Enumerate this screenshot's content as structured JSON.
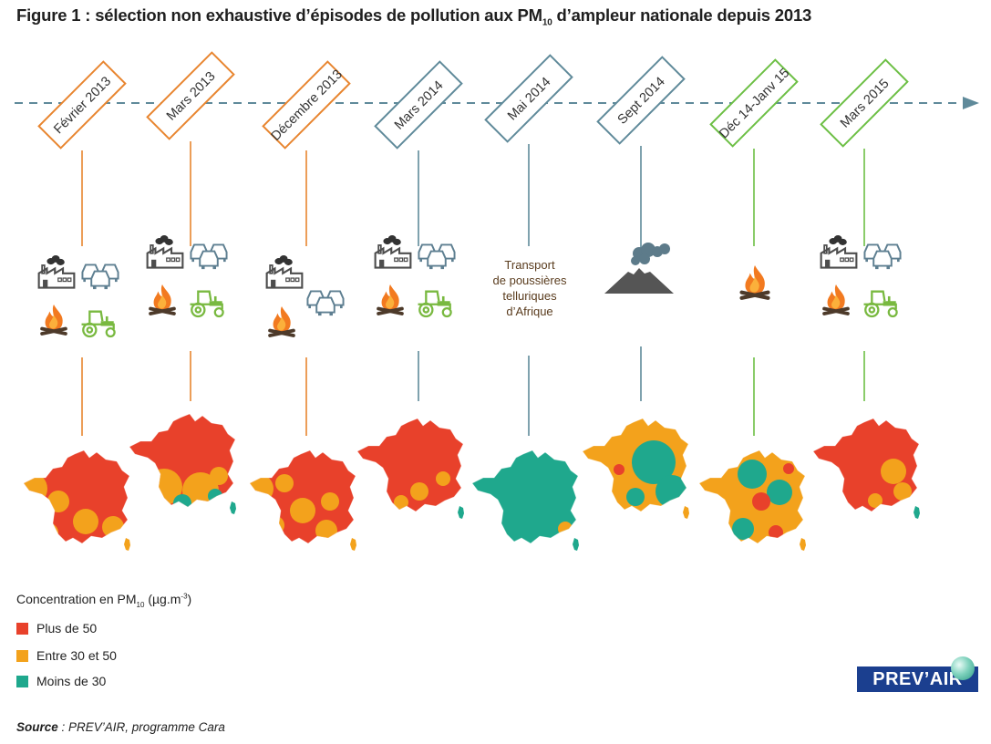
{
  "title": {
    "prefix": "Figure 1 : sélection non exhaustive d’épisodes de pollution aux PM",
    "sub": "10",
    "suffix": " d’ampleur nationale depuis 2013"
  },
  "episodes": [
    {
      "label": "Février 2013",
      "color": "#e8852f",
      "sources": [
        "industry",
        "traffic",
        "wood-burning",
        "agriculture"
      ]
    },
    {
      "label": "Mars 2013",
      "color": "#e8852f",
      "sources": [
        "industry",
        "traffic",
        "wood-burning",
        "agriculture"
      ]
    },
    {
      "label": "Décembre 2013",
      "color": "#e8852f",
      "sources": [
        "industry",
        "traffic",
        "wood-burning"
      ]
    },
    {
      "label": "Mars 2014",
      "color": "#5f8a9a",
      "sources": [
        "industry",
        "traffic",
        "wood-burning",
        "agriculture"
      ]
    },
    {
      "label": "Mai 2014",
      "color": "#5f8a9a",
      "sources": [
        "desert-dust"
      ]
    },
    {
      "label": "Sept 2014",
      "color": "#5f8a9a",
      "sources": [
        "volcano"
      ]
    },
    {
      "label": "Déc 14-Janv 15",
      "color": "#6cbf44",
      "sources": [
        "wood-burning"
      ]
    },
    {
      "label": "Mars 2015",
      "color": "#6cbf44",
      "sources": [
        "industry",
        "traffic",
        "wood-burning",
        "agriculture"
      ]
    }
  ],
  "dust_text": [
    "Transport",
    "de poussières",
    "telluriques",
    "d’Afrique"
  ],
  "legend": {
    "title_prefix": "Concentration en PM",
    "title_sub": "10",
    "title_mid": " (µg.m",
    "title_sup": "-3",
    "title_end": ")",
    "items": [
      {
        "label": "Plus de 50",
        "color": "#e8412b"
      },
      {
        "label": "Entre 30 et 50",
        "color": "#f3a21c"
      },
      {
        "label": "Moins de 30",
        "color": "#1fa88d"
      }
    ]
  },
  "source": {
    "label": "Source",
    "text": " : PREV’AIR, programme Cara"
  },
  "logo": "PREV’AIR",
  "colors": {
    "timeline": "#5f8a9a",
    "red": "#e8412b",
    "orange": "#f3a21c",
    "teal": "#1fa88d",
    "icon_grey": "#4d4d4d",
    "icon_steel": "#5e7f91",
    "icon_green": "#79b940",
    "flame": "#f27a20"
  }
}
